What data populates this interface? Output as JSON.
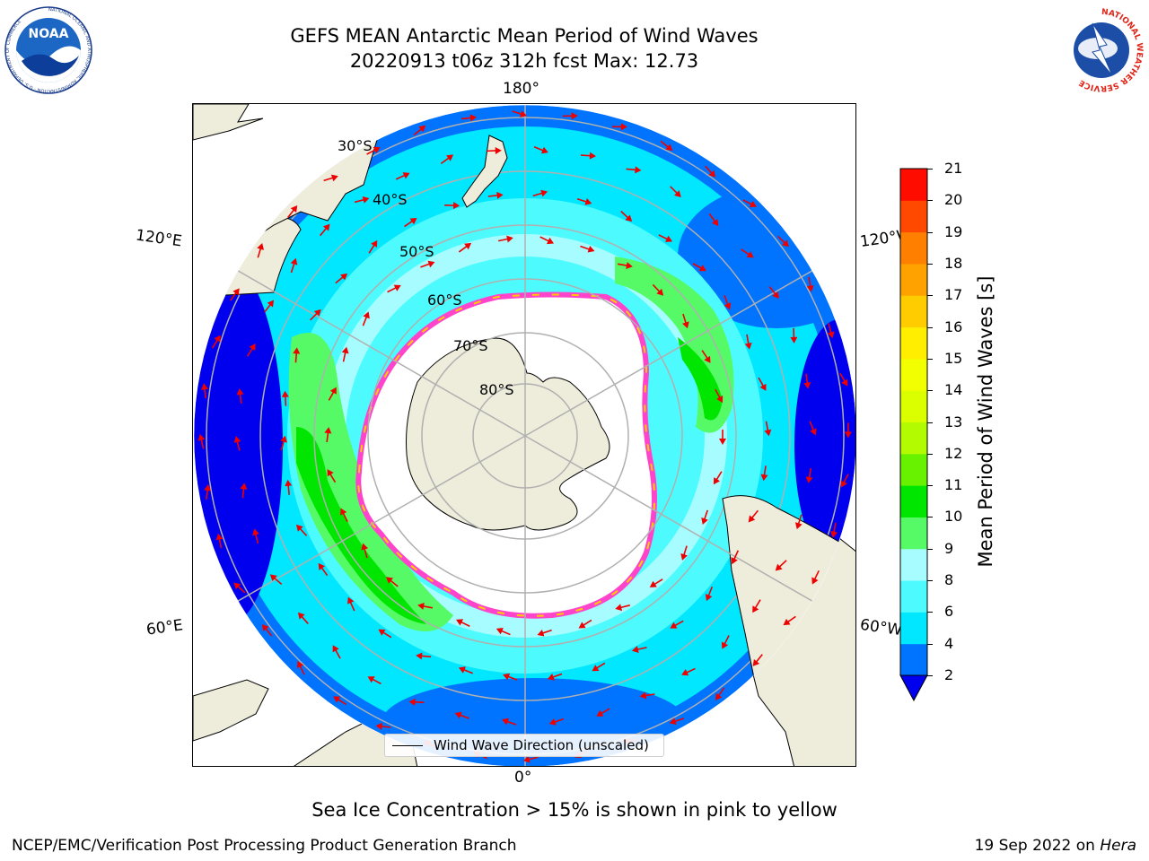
{
  "header": {
    "title_line1": "GEFS MEAN Antarctic Mean Period of Wind Waves",
    "title_line2": "20220913 t06z 312h fcst   Max: 12.73"
  },
  "logos": {
    "left": {
      "text": "NOAA",
      "ring": "NATIONAL OCEANIC AND ATMOSPHERIC ADMINISTRATION · U.S. DEPARTMENT OF COMMERCE"
    },
    "right": {
      "ring": "NATIONAL WEATHER SERVICE"
    }
  },
  "map": {
    "longitude_labels": {
      "top": "180°",
      "bottom": "0°",
      "left_upper": "120°E",
      "left_lower": "60°E",
      "right_upper": "120°W",
      "right_lower": "60°W"
    },
    "latitude_labels": [
      "30°S",
      "40°S",
      "50°S",
      "60°S",
      "70°S",
      "80°S"
    ],
    "colors": {
      "land": "#eeecdb",
      "ice": "#ffffff",
      "deep_blue": "#0000ee",
      "blue": "#0073ff",
      "cyan": "#00ffff",
      "light_cyan": "#9ffcff",
      "green": "#00ee00",
      "light_green": "#66ff66",
      "arrow": "#ee0000",
      "ice_edge": "#ff44cc"
    }
  },
  "colorbar": {
    "label": "Mean Period of Wind Waves [s]",
    "ticks": [
      "2",
      "4",
      "6",
      "8",
      "9",
      "10",
      "11",
      "12",
      "13",
      "14",
      "15",
      "16",
      "17",
      "18",
      "19",
      "20",
      "21"
    ],
    "colors": [
      "#0073ff",
      "#00e7ff",
      "#4dfbff",
      "#a6fcff",
      "#55fa66",
      "#00e600",
      "#69f200",
      "#b3fb00",
      "#dcff00",
      "#f2ff00",
      "#ffee00",
      "#ffcc00",
      "#ffa200",
      "#ff7f00",
      "#ff4800",
      "#ff0c00"
    ],
    "extend_min_color": "#0000ee"
  },
  "legend": {
    "label": "Wind Wave Direction (unscaled)"
  },
  "caption": "Sea Ice Concentration > 15% is shown in pink to yellow",
  "footer": {
    "left": "NCEP/EMC/Verification Post Processing Product Generation Branch",
    "right_prefix": "19 Sep 2022 on ",
    "right_italic": "Hera"
  }
}
